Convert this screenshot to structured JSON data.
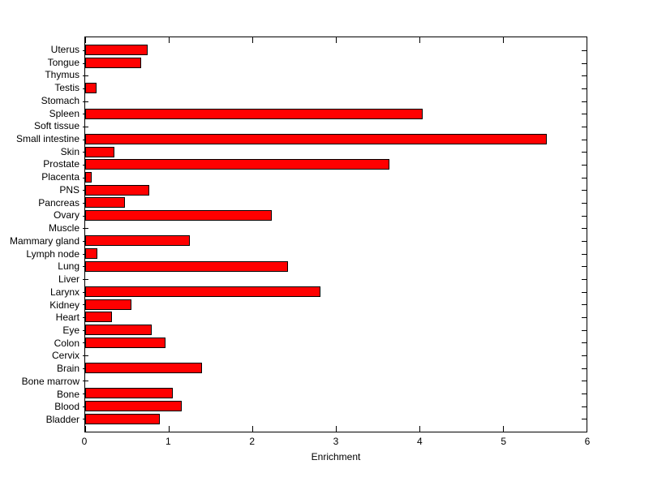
{
  "figure": {
    "background": "#FFFFFF",
    "bar_fill": "#FF0000",
    "bar_edge": "#000000",
    "axis_color": "#000000"
  },
  "chart_data": {
    "type": "bar",
    "orientation": "horizontal",
    "title": "",
    "xlabel": "Enrichment",
    "ylabel": "",
    "xlim": [
      0,
      6
    ],
    "xticks": [
      0,
      1,
      2,
      3,
      4,
      5,
      6
    ],
    "grid": false,
    "legend": null,
    "categories": [
      "Uterus",
      "Tongue",
      "Thymus",
      "Testis",
      "Stomach",
      "Spleen",
      "Soft tissue",
      "Small intestine",
      "Skin",
      "Prostate",
      "Placenta",
      "PNS",
      "Pancreas",
      "Ovary",
      "Muscle",
      "Mammary gland",
      "Lymph node",
      "Lung",
      "Liver",
      "Larynx",
      "Kidney",
      "Heart",
      "Eye",
      "Colon",
      "Cervix",
      "Brain",
      "Bone marrow",
      "Bone",
      "Blood",
      "Bladder"
    ],
    "values": [
      0.75,
      0.67,
      0,
      0.14,
      0,
      4.04,
      0,
      5.52,
      0.35,
      3.64,
      0.08,
      0.77,
      0.48,
      2.23,
      0,
      1.25,
      0.15,
      2.43,
      0,
      2.82,
      0.55,
      0.32,
      0.8,
      0.96,
      0,
      1.4,
      0,
      1.05,
      1.16,
      0.89
    ]
  }
}
